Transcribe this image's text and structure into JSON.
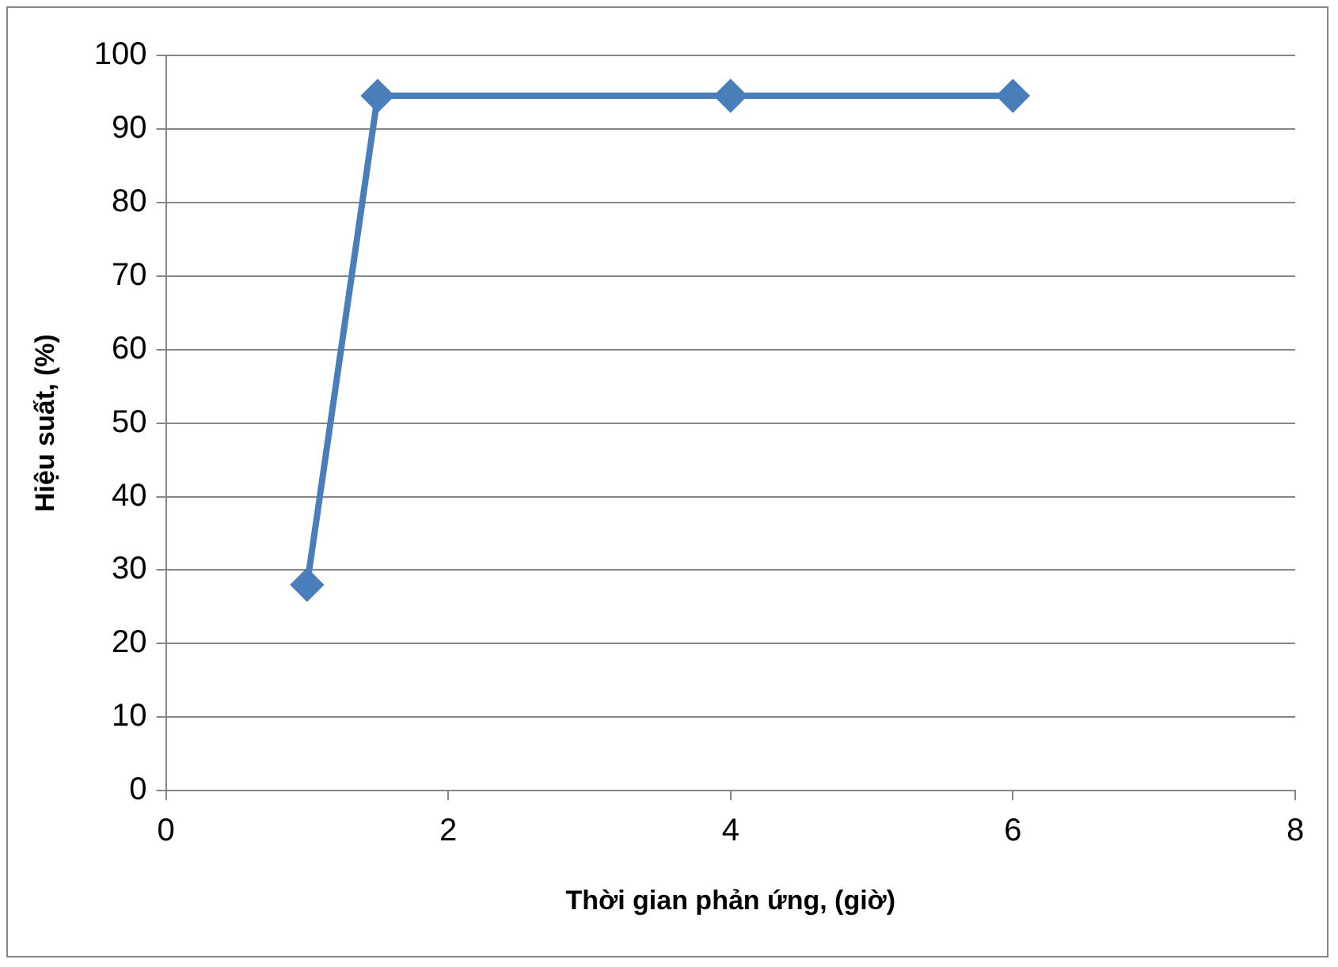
{
  "chart_data": {
    "type": "line",
    "xlabel": "Thời gian phản ứng, (giờ)",
    "ylabel": "Hiệu suất, (%)",
    "x": [
      1,
      1.5,
      4,
      6
    ],
    "series": [
      {
        "color": "#4a7ebb",
        "values": [
          28,
          94.5,
          94.5,
          94.5
        ]
      }
    ],
    "xlim": [
      0,
      8
    ],
    "xticks": [
      0,
      2,
      4,
      6,
      8
    ],
    "ylim": [
      0,
      100
    ],
    "yticks": [
      0,
      10,
      20,
      30,
      40,
      50,
      60,
      70,
      80,
      90,
      100
    ],
    "grid": "y",
    "legend": false,
    "marker": "diamond",
    "line_style": "solid"
  }
}
